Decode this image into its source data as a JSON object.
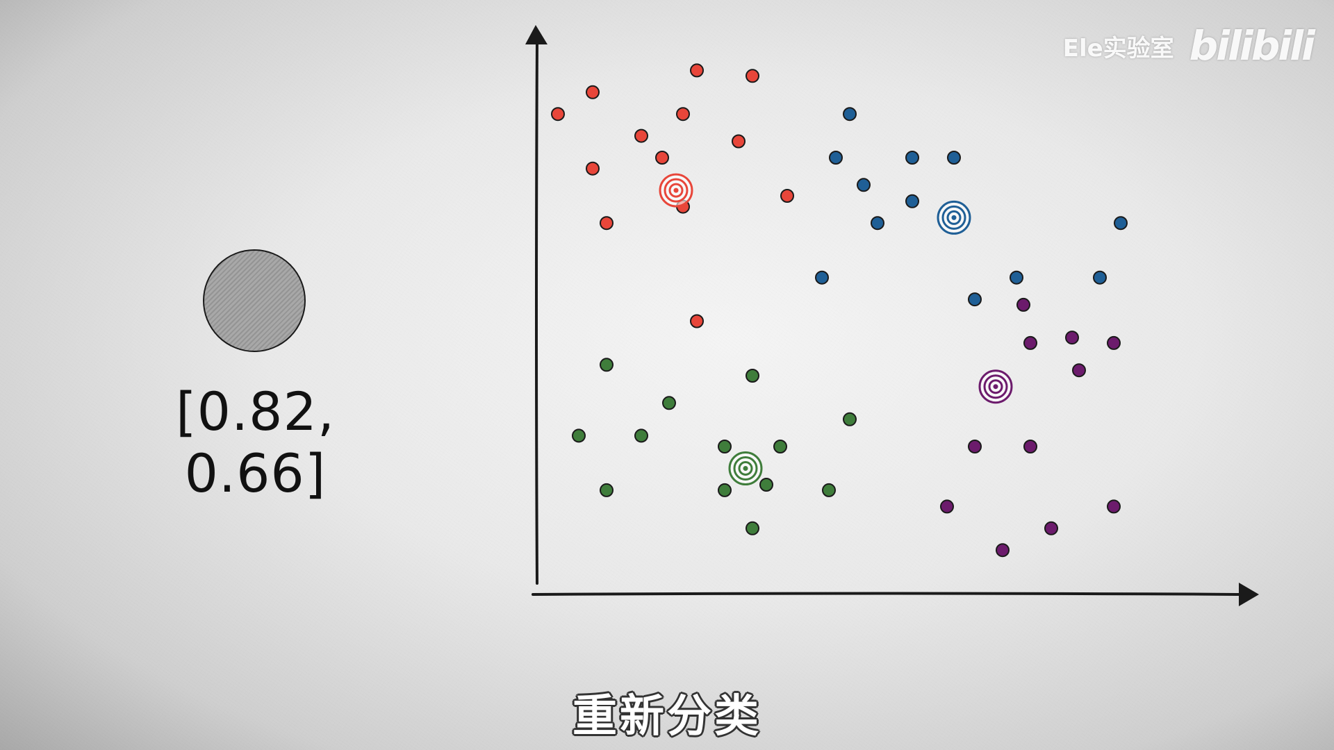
{
  "watermark": {
    "channel": "Ele实验室",
    "logo": "bilibili"
  },
  "sample": {
    "vector_label": "[0.82, 0.66]",
    "color": "#a8a8a8"
  },
  "subtitle": "重新分类",
  "chart_data": {
    "type": "scatter",
    "title": "",
    "xlabel": "",
    "ylabel": "",
    "xlim": [
      0,
      1
    ],
    "ylim": [
      0,
      1
    ],
    "grid": false,
    "series": [
      {
        "color": "#e8463a",
        "centroid": [
          0.2,
          0.74
        ],
        "points": [
          [
            0.03,
            0.88
          ],
          [
            0.08,
            0.92
          ],
          [
            0.23,
            0.96
          ],
          [
            0.31,
            0.95
          ],
          [
            0.21,
            0.88
          ],
          [
            0.15,
            0.84
          ],
          [
            0.29,
            0.83
          ],
          [
            0.18,
            0.8
          ],
          [
            0.08,
            0.78
          ],
          [
            0.36,
            0.73
          ],
          [
            0.21,
            0.71
          ],
          [
            0.1,
            0.68
          ],
          [
            0.23,
            0.5
          ]
        ]
      },
      {
        "color": "#1f5f96",
        "centroid": [
          0.6,
          0.69
        ],
        "points": [
          [
            0.45,
            0.88
          ],
          [
            0.43,
            0.8
          ],
          [
            0.54,
            0.8
          ],
          [
            0.6,
            0.8
          ],
          [
            0.47,
            0.75
          ],
          [
            0.54,
            0.72
          ],
          [
            0.49,
            0.68
          ],
          [
            0.84,
            0.68
          ],
          [
            0.41,
            0.58
          ],
          [
            0.69,
            0.58
          ],
          [
            0.81,
            0.58
          ],
          [
            0.63,
            0.54
          ]
        ]
      },
      {
        "color": "#3f7d3b",
        "centroid": [
          0.3,
          0.23
        ],
        "points": [
          [
            0.1,
            0.42
          ],
          [
            0.31,
            0.4
          ],
          [
            0.19,
            0.35
          ],
          [
            0.45,
            0.32
          ],
          [
            0.06,
            0.29
          ],
          [
            0.15,
            0.29
          ],
          [
            0.27,
            0.27
          ],
          [
            0.35,
            0.27
          ],
          [
            0.33,
            0.2
          ],
          [
            0.1,
            0.19
          ],
          [
            0.27,
            0.19
          ],
          [
            0.42,
            0.19
          ],
          [
            0.31,
            0.12
          ]
        ]
      },
      {
        "color": "#6c1b6c",
        "centroid": [
          0.66,
          0.38
        ],
        "points": [
          [
            0.7,
            0.53
          ],
          [
            0.71,
            0.46
          ],
          [
            0.77,
            0.47
          ],
          [
            0.83,
            0.46
          ],
          [
            0.78,
            0.41
          ],
          [
            0.63,
            0.27
          ],
          [
            0.71,
            0.27
          ],
          [
            0.59,
            0.16
          ],
          [
            0.83,
            0.16
          ],
          [
            0.74,
            0.12
          ],
          [
            0.67,
            0.08
          ]
        ]
      }
    ]
  }
}
